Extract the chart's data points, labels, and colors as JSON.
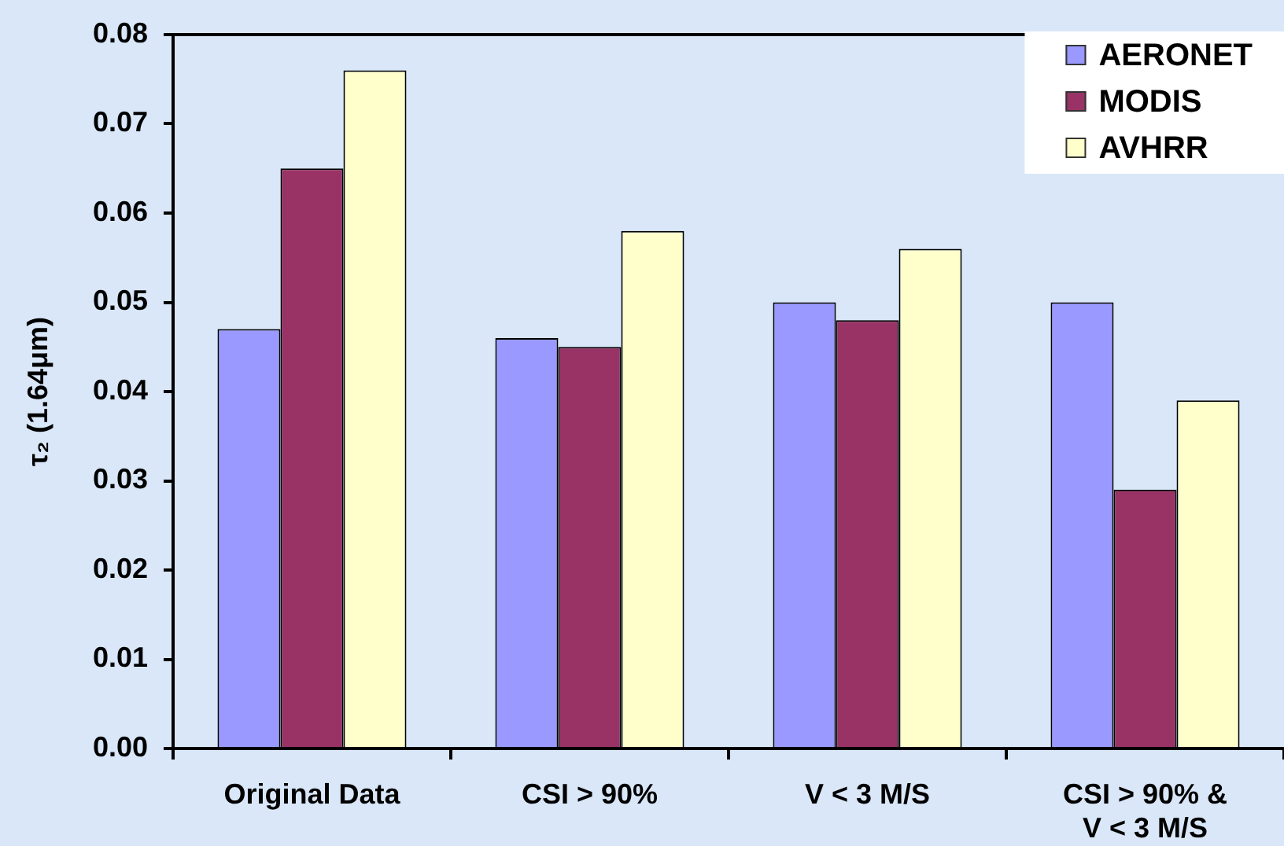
{
  "chart_data": {
    "type": "bar",
    "ylabel": "τ₂ (1.64μm)",
    "categories": [
      "Original Data",
      "CSI > 90%",
      "V < 3 M/S",
      "CSI > 90% & V < 3 M/S"
    ],
    "series": [
      {
        "name": "AERONET",
        "color": "#9999ff",
        "values": [
          0.047,
          0.046,
          0.05,
          0.05
        ]
      },
      {
        "name": "MODIS",
        "color": "#993366",
        "values": [
          0.065,
          0.045,
          0.048,
          0.029
        ]
      },
      {
        "name": "AVHRR",
        "color": "#ffffcc",
        "values": [
          0.076,
          0.058,
          0.056,
          0.039
        ]
      }
    ],
    "ylim": [
      0,
      0.08
    ],
    "yticks": [
      {
        "value": 0,
        "label": "0.00"
      },
      0.01,
      0.02,
      0.03,
      0.04,
      0.05,
      0.06,
      0.07,
      0.08
    ],
    "legend": "top right"
  }
}
